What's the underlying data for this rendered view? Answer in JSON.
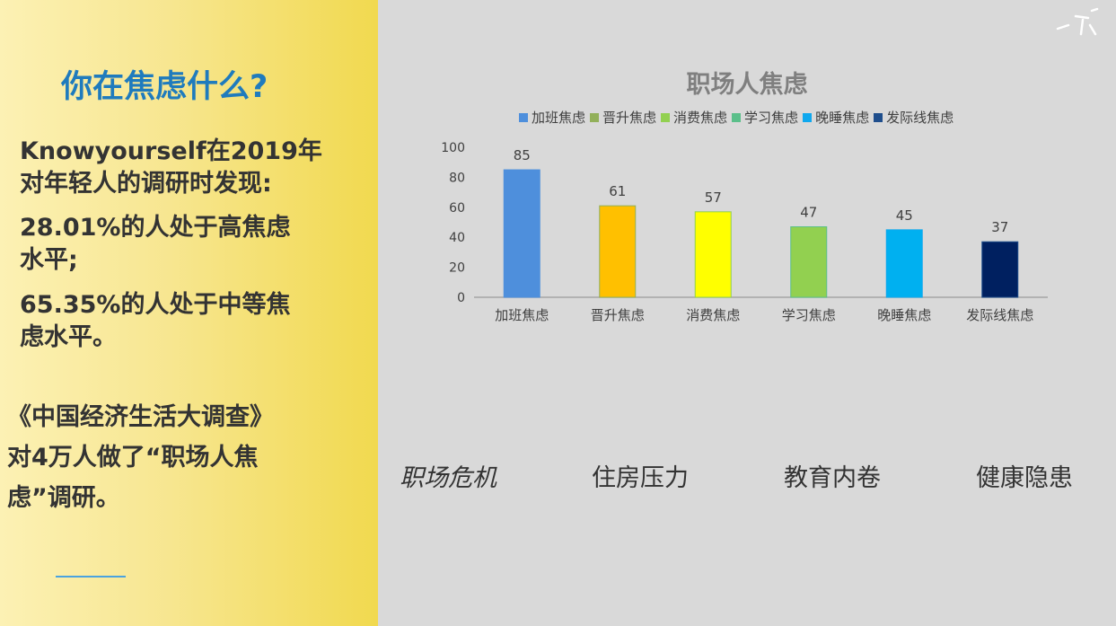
{
  "left": {
    "title": "你在焦虑什么?",
    "para1": "Knowyourself在2019年\n对年轻人的调研时发现:",
    "para2": "28.01%的人处于高焦虑\n水平;",
    "para3": "65.35%的人处于中等焦\n虑水平。",
    "para4": "《中国经济生活大调查》\n对4万人做了“职场人焦\n虑”调研。"
  },
  "keywords": [
    "职场危机",
    "住房压力",
    "教育内卷",
    "健康隐患"
  ],
  "chart_data": {
    "type": "bar",
    "title": "职场人焦虑",
    "categories": [
      "加班焦虑",
      "晋升焦虑",
      "消费焦虑",
      "学习焦虑",
      "晚睡焦虑",
      "发际线焦虑"
    ],
    "values": [
      85,
      61,
      57,
      47,
      45,
      37
    ],
    "ylim": [
      0,
      100
    ],
    "yticks": [
      0,
      20,
      40,
      60,
      80,
      100
    ],
    "legend_position": "top",
    "colors": [
      "#4e8fdc",
      "#ffc000",
      "#ffff00",
      "#92d050",
      "#00b0f0",
      "#002060"
    ],
    "legend_colors": [
      "#4e8fdc",
      "#92b05a",
      "#92d050",
      "#5bbf8a",
      "#0fa8ee",
      "#1f4e8c"
    ],
    "grid": false
  }
}
